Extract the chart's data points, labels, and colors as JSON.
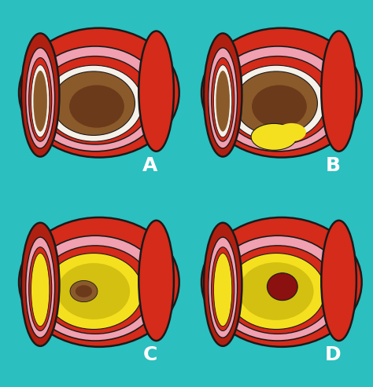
{
  "background_color": "#2bbfbf",
  "panels": [
    "A",
    "B",
    "C",
    "D"
  ],
  "colors": {
    "outer_red": "#d42b1a",
    "shadow_red": "#b02010",
    "pink": "#f0a0b0",
    "white_ring": "#f5f0e8",
    "lumen_brown": "#8B5a2b",
    "lumen_dark": "#6b3a1a",
    "yellow_plaque": "#f5e020",
    "yellow_dark": "#d4c010",
    "dark_red_clot": "#8B1010",
    "outline": "#1a1a1a"
  },
  "label_color": "white",
  "label_fontsize": 18
}
